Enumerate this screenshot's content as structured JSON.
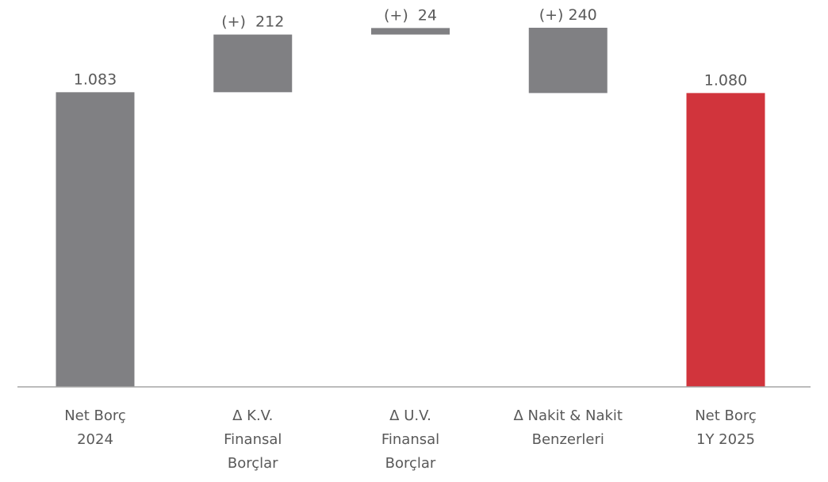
{
  "chart_data": {
    "type": "bar",
    "variant": "waterfall",
    "categories": [
      [
        "Net Borç",
        "2024"
      ],
      [
        "Δ K.V.",
        "Finansal",
        "Borçlar"
      ],
      [
        "Δ U.V.",
        "Finansal",
        "Borçlar"
      ],
      [
        "Δ Nakit & Nakit",
        "Benzerleri"
      ],
      [
        "Net Borç",
        "1Y 2025"
      ]
    ],
    "bars": [
      {
        "kind": "total",
        "start": 0,
        "end": 1083,
        "label": "1.083",
        "color": "#808083"
      },
      {
        "kind": "delta",
        "start": 1083,
        "end": 1295,
        "label": "(+)  212",
        "color": "#808083"
      },
      {
        "kind": "delta",
        "start": 1295,
        "end": 1319,
        "label": "(+)  24",
        "color": "#808083"
      },
      {
        "kind": "delta",
        "start": 1080,
        "end": 1320,
        "label": "(+) 240",
        "color": "#808083"
      },
      {
        "kind": "total",
        "start": 0,
        "end": 1080,
        "label": "1.080",
        "color": "#D1343C"
      }
    ],
    "ylim": [
      0,
      1320
    ],
    "grid": false,
    "legend": "none",
    "title": "",
    "xlabel": "",
    "ylabel": ""
  }
}
